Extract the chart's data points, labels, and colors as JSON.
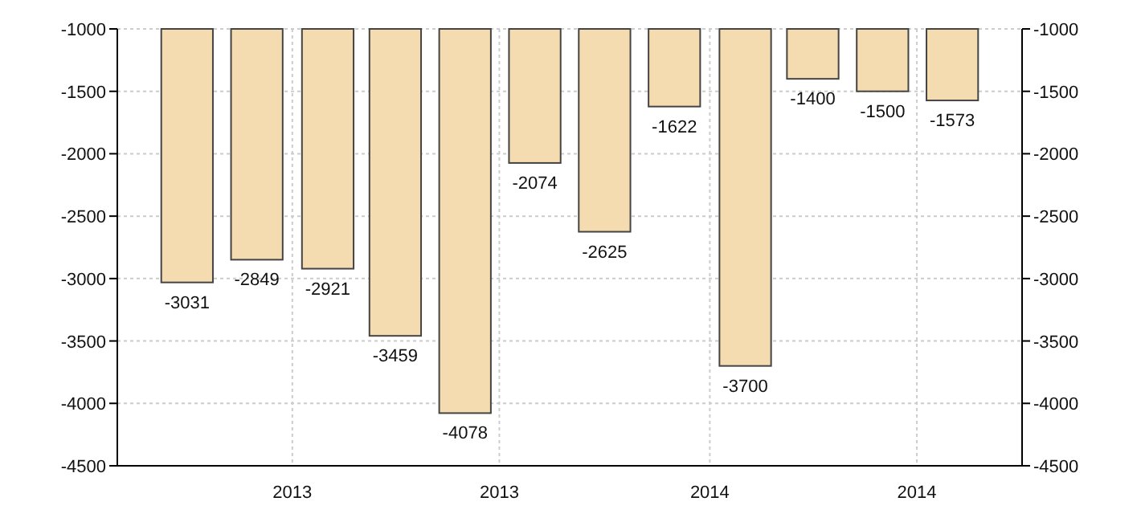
{
  "chart_data": {
    "type": "bar",
    "x": [
      "2012-10",
      "2012-12",
      "2013-02",
      "2013-04",
      "2013-06",
      "2013-08",
      "2013-10",
      "2013-12",
      "2014-02",
      "2014-04",
      "2014-06",
      "2014-08"
    ],
    "values": [
      -3031,
      -2849,
      -2921,
      -3459,
      -4078,
      -2074,
      -2625,
      -1622,
      -3700,
      -1400,
      -1500,
      -1573
    ],
    "color": "#f5dcb0",
    "data_labels": true,
    "grid": true,
    "xlim": [
      "2012-08",
      "2014-10"
    ],
    "xticks": [
      {
        "value": "2013-01",
        "label": "2013"
      },
      {
        "value": "2013-07",
        "label": "2013"
      },
      {
        "value": "2014-01",
        "label": "2014"
      },
      {
        "value": "2014-07",
        "label": "2014"
      }
    ],
    "ylim": [
      -4500,
      -1000
    ],
    "yticks": [
      -4500,
      -4000,
      -3500,
      -3000,
      -2500,
      -2000,
      -1500,
      -1000
    ],
    "y2lim": [
      -4500,
      -1000
    ],
    "y2ticks": [
      -4500,
      -4000,
      -3500,
      -3000,
      -2500,
      -2000,
      -1500,
      -1000
    ]
  }
}
